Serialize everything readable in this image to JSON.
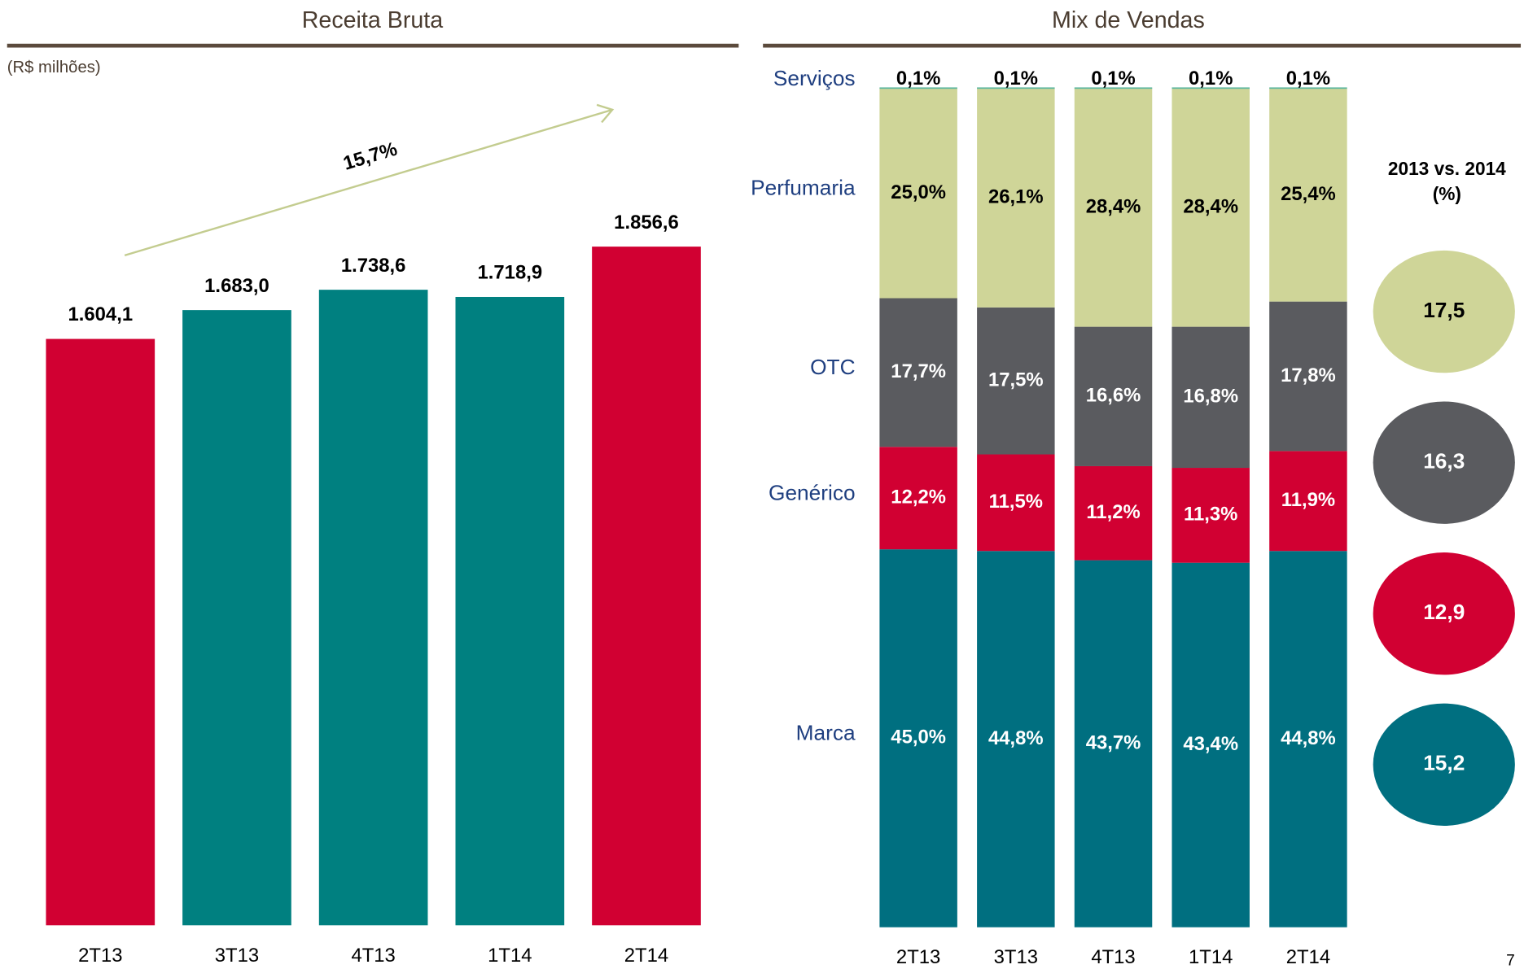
{
  "chart_data": [
    {
      "type": "bar",
      "title": "Receita Bruta",
      "subtitle": "(R$ milhões)",
      "categories": [
        "2T13",
        "3T13",
        "4T13",
        "1T14",
        "2T14"
      ],
      "values": [
        1604.1,
        1683.0,
        1738.6,
        1718.9,
        1856.6
      ],
      "value_labels": [
        "1.604,1",
        "1.683,0",
        "1.738,6",
        "1.718,9",
        "1.856,6"
      ],
      "colors": [
        "#d10032",
        "#008080",
        "#008080",
        "#008080",
        "#d10032"
      ],
      "annotation": "15,7%"
    },
    {
      "type": "stacked_bar",
      "title": "Mix de Vendas",
      "categories": [
        "2T13",
        "3T13",
        "4T13",
        "1T14",
        "2T14"
      ],
      "series": [
        {
          "name": "Marca",
          "color": "#006f80",
          "values": [
            45.0,
            44.8,
            43.7,
            43.4,
            44.8
          ],
          "value_labels": [
            "45,0%",
            "44,8%",
            "43,7%",
            "43,4%",
            "44,8%"
          ]
        },
        {
          "name": "Genérico",
          "color": "#d10032",
          "values": [
            12.2,
            11.5,
            11.2,
            11.3,
            11.9
          ],
          "value_labels": [
            "12,2%",
            "11,5%",
            "11,2%",
            "11,3%",
            "11,9%"
          ]
        },
        {
          "name": "OTC",
          "color": "#5a5b5f",
          "values": [
            17.7,
            17.5,
            16.6,
            16.8,
            17.8
          ],
          "value_labels": [
            "17,7%",
            "17,5%",
            "16,6%",
            "16,8%",
            "17,8%"
          ]
        },
        {
          "name": "Perfumaria",
          "color": "#cfd598",
          "values": [
            25.0,
            26.1,
            28.4,
            28.4,
            25.4
          ],
          "value_labels": [
            "25,0%",
            "26,1%",
            "28,4%",
            "28,4%",
            "25,4%"
          ]
        },
        {
          "name": "Serviços",
          "color": "#5fb8a0",
          "values": [
            0.1,
            0.1,
            0.1,
            0.1,
            0.1
          ],
          "value_labels": [
            "0,1%",
            "0,1%",
            "0,1%",
            "0,1%",
            "0,1%"
          ]
        }
      ],
      "growth": {
        "title": [
          "2013 vs. 2014",
          "(%)"
        ],
        "values": [
          17.5,
          16.3,
          12.9,
          15.2
        ],
        "value_labels": [
          "17,5",
          "16,3",
          "12,9",
          "15,2"
        ],
        "colors": [
          "#cfd598",
          "#5a5b5f",
          "#d10032",
          "#006f80"
        ]
      }
    }
  ],
  "page_number": "7"
}
